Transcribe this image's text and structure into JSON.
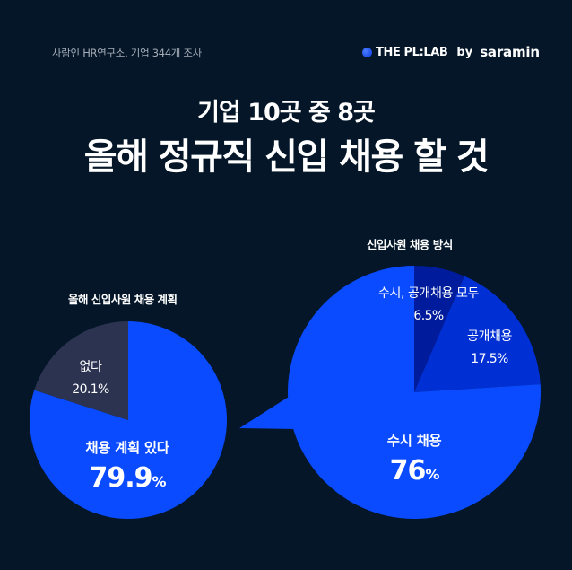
{
  "header": {
    "source": "사람인 HR연구소, 기업 344개 조사",
    "brand": {
      "logo": "blue-dot-icon",
      "name": "THE PL:LAB",
      "by": "by",
      "partner": "saramin"
    }
  },
  "headline": {
    "line1": "기업 10곳 중 8곳",
    "line2": "올해 정규직 신입 채용 할 것"
  },
  "colors": {
    "background": "#041628",
    "primary_blue": "#0a4bff",
    "dark_slate": "#2c3350",
    "mid_blue": "#0030d4",
    "deep_blue": "#001c9c"
  },
  "chart_data": [
    {
      "type": "pie",
      "title": "올해 신입사원 채용 계획",
      "slices": [
        {
          "label": "채용 계획 있다",
          "value": 79.9,
          "display": "79.9",
          "color": "#0a4bff"
        },
        {
          "label": "없다",
          "value": 20.1,
          "display": "20.1%",
          "color": "#2c3350"
        }
      ]
    },
    {
      "type": "pie",
      "title": "신입사원 채용 방식",
      "slices": [
        {
          "label": "수시 채용",
          "value": 76,
          "display": "76",
          "color": "#0a4bff"
        },
        {
          "label": "공개채용",
          "value": 17.5,
          "display": "17.5%",
          "color": "#0030d4"
        },
        {
          "label": "수시, 공개채용 모두",
          "value": 6.5,
          "display": "6.5%",
          "color": "#001c9c"
        }
      ]
    }
  ],
  "units": {
    "percent": "%"
  }
}
